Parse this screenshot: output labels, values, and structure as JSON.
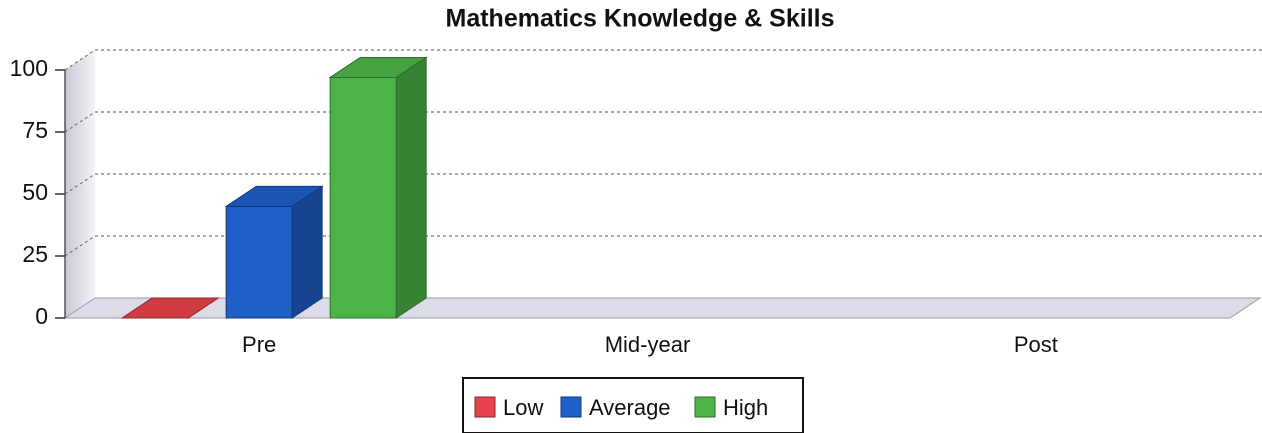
{
  "chart_data": {
    "type": "bar3d",
    "title": "Mathematics Knowledge & Skills",
    "categories": [
      "Pre",
      "Mid-year",
      "Post"
    ],
    "series": [
      {
        "name": "Low",
        "color": "#e8434a",
        "values": [
          0,
          null,
          null
        ]
      },
      {
        "name": "Average",
        "color": "#1e5fc8",
        "values": [
          45,
          null,
          null
        ]
      },
      {
        "name": "High",
        "color": "#4cb447",
        "values": [
          97,
          null,
          null
        ]
      }
    ],
    "ylim": [
      0,
      100
    ],
    "yticks": [
      0,
      25,
      50,
      75,
      100
    ],
    "grid": true,
    "legend": "bottom"
  }
}
